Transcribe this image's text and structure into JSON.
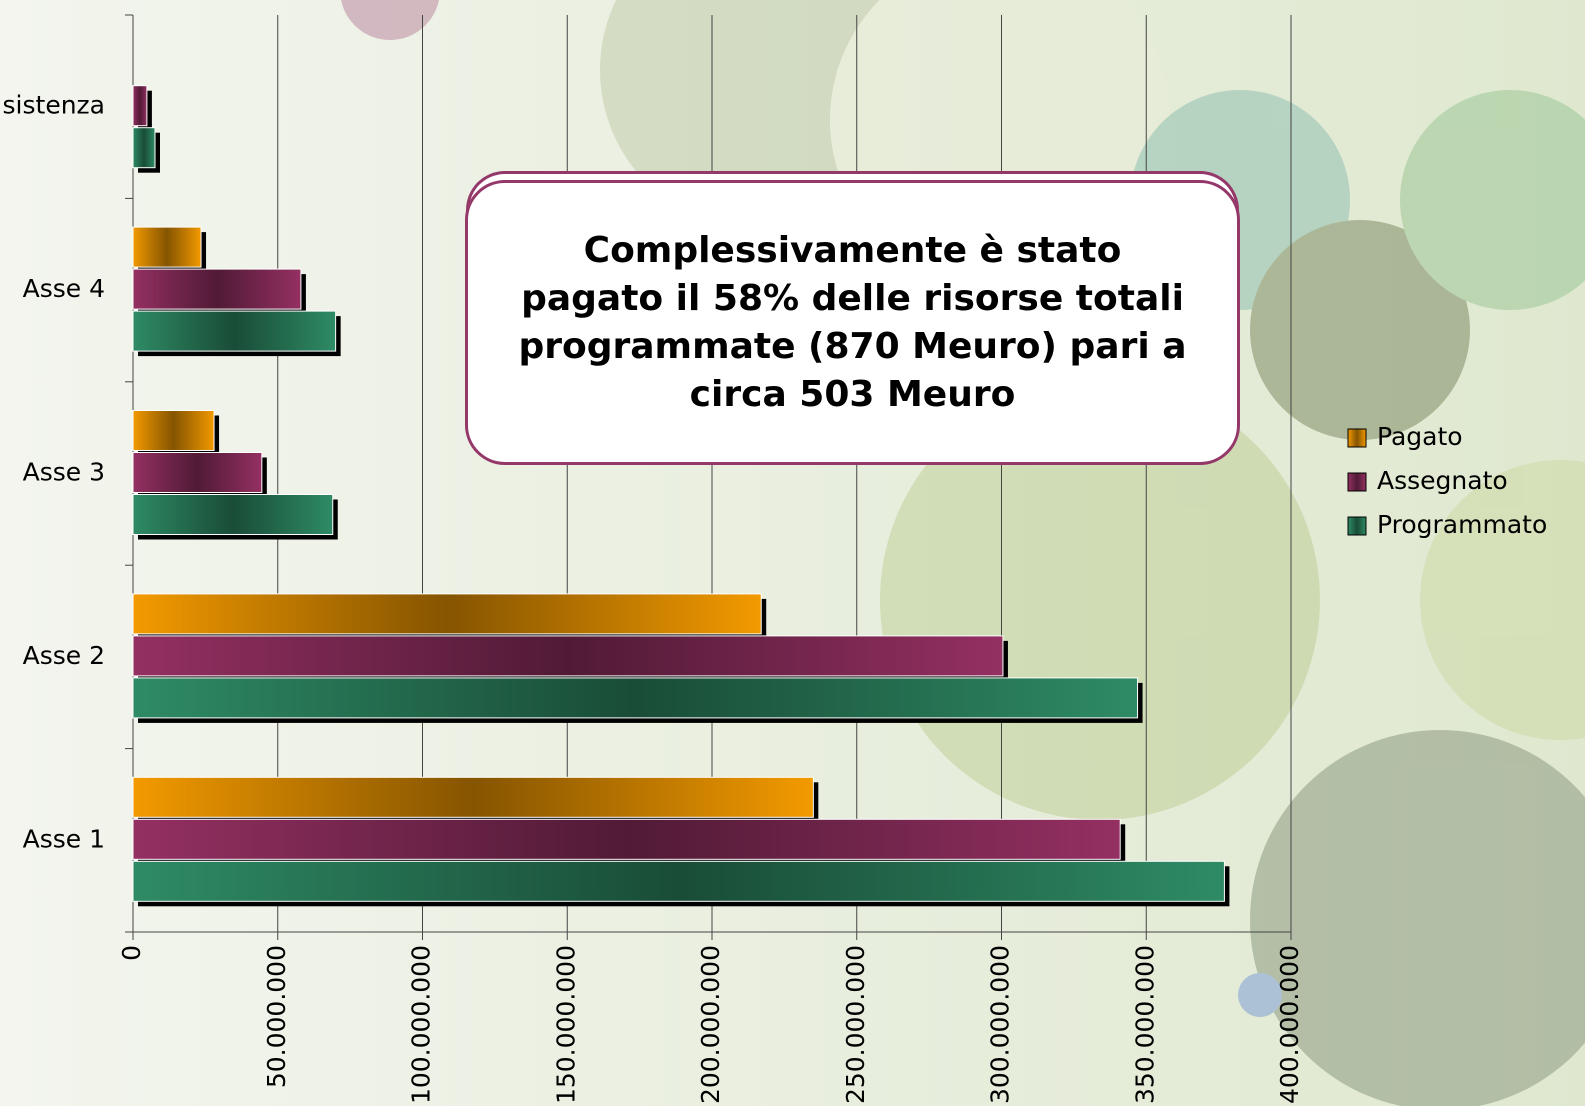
{
  "chart_data": {
    "type": "hbar",
    "annotation": "Complessivamente è stato pagato il 58% delle risorse totali programmate (870 Meuro) pari a circa 503 Meuro",
    "categories": [
      "Asse 1",
      "Asse 2",
      "Asse 3",
      "Asse 4",
      "sistenza"
    ],
    "series": [
      {
        "name": "Pagato",
        "color": "#f39a00",
        "values": [
          235000000,
          217000000,
          28000000,
          23500000,
          0
        ]
      },
      {
        "name": "Assegnato",
        "color": "#943062",
        "values": [
          341000000,
          300500000,
          44500000,
          58000000,
          4800000
        ]
      },
      {
        "name": "Programmato",
        "color": "#2e8b65",
        "values": [
          377000000,
          347000000,
          69000000,
          70000000,
          7600000
        ]
      }
    ],
    "xlim": [
      0,
      400000000
    ],
    "xticks": [
      0,
      {
        "value": 50000000,
        "label": "50.000.000"
      },
      {
        "value": 100000000,
        "label": "100.000.000"
      },
      {
        "value": 150000000,
        "label": "150.000.000"
      },
      {
        "value": 200000000,
        "label": "200.000.000"
      },
      {
        "value": 250000000,
        "label": "250.000.000"
      },
      {
        "value": 300000000,
        "label": "300.000.000"
      },
      {
        "value": 350000000,
        "label": "350.000.000"
      },
      {
        "value": 400000000,
        "label": "400.000.000"
      }
    ],
    "grid": true,
    "legend": "right"
  }
}
